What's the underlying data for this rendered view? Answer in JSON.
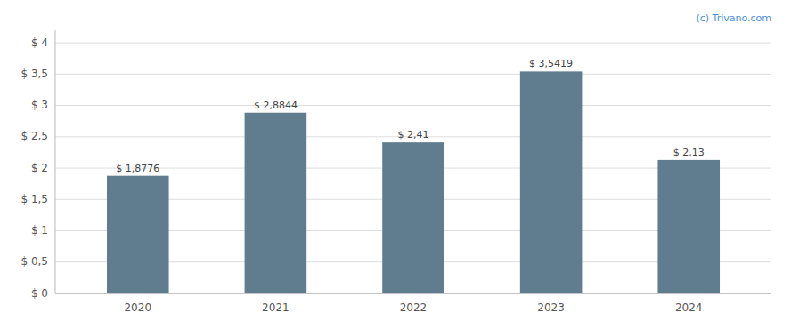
{
  "chart_data": {
    "type": "bar",
    "categories": [
      "2020",
      "2021",
      "2022",
      "2023",
      "2024"
    ],
    "values": [
      1.8776,
      2.8844,
      2.41,
      3.5419,
      2.13
    ],
    "value_labels": [
      "$ 1,8776",
      "$ 2,8844",
      "$ 2,41",
      "$ 3,5419",
      "$ 2,13"
    ],
    "data_labels": true,
    "color": "#5f7d8e",
    "ylim": [
      0,
      4.2
    ],
    "yticks": [
      {
        "value": 0,
        "label": "$ 0"
      },
      {
        "value": 0.5,
        "label": "$ 0,5"
      },
      {
        "value": 1.0,
        "label": "$ 1"
      },
      {
        "value": 1.5,
        "label": "$ 1,5"
      },
      {
        "value": 2.0,
        "label": "$ 2"
      },
      {
        "value": 2.5,
        "label": "$ 2,5"
      },
      {
        "value": 3.0,
        "label": "$ 3"
      },
      {
        "value": 3.5,
        "label": "$ 3,5"
      },
      {
        "value": 4.0,
        "label": "$ 4"
      }
    ],
    "grid": true,
    "annotations": [
      "(c) Trivano.com"
    ]
  }
}
